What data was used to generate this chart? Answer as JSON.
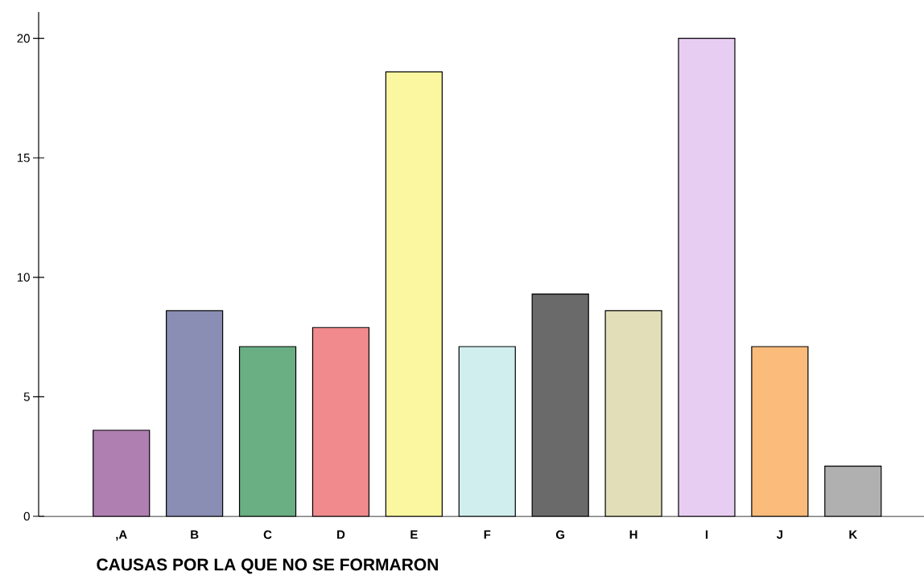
{
  "chart_data": {
    "type": "bar",
    "xlabel": "CAUSAS POR LA QUE NO SE FORMARON",
    "categories": [
      ",A",
      "B",
      "C",
      "D",
      "E",
      "F",
      "G",
      "H",
      "I",
      "J",
      "K"
    ],
    "values": [
      3.6,
      8.6,
      7.1,
      7.9,
      18.6,
      7.1,
      9.3,
      8.6,
      20,
      7.1,
      2.1
    ],
    "colors": [
      "#b07fb2",
      "#8a8eb5",
      "#6aae84",
      "#f08a8c",
      "#fbf7a0",
      "#d0eeee",
      "#6a6a6a",
      "#e2dfb8",
      "#e8cdf3",
      "#fbbb7a",
      "#b0b0b0"
    ],
    "ylim": [
      0,
      21.1
    ],
    "yticks": [
      0,
      5,
      10,
      15,
      20
    ],
    "grid": false
  }
}
